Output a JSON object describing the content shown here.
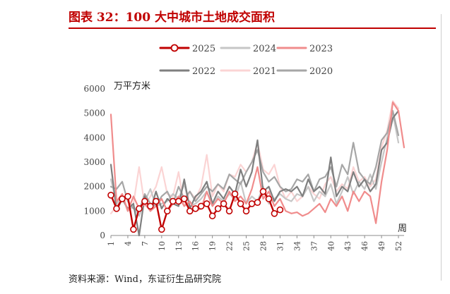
{
  "figure": {
    "title": "图表 32：100 大中城市土地成交面积",
    "source": "资料来源：Wind，东证衍生品研究院"
  },
  "chart_data": {
    "type": "line",
    "ylabel": "万平方米",
    "xlabel": "周",
    "ylim": [
      0,
      6000
    ],
    "yticks": [
      0,
      1000,
      2000,
      3000,
      4000,
      5000,
      6000
    ],
    "xlim": [
      1,
      53
    ],
    "xticks": [
      1,
      4,
      7,
      10,
      13,
      16,
      19,
      22,
      25,
      28,
      31,
      34,
      37,
      40,
      43,
      46,
      49,
      52
    ],
    "legend_position": "top",
    "grid": false,
    "series": [
      {
        "name": "2025",
        "color": "#c00000",
        "markers": true,
        "x": [
          1,
          2,
          3,
          4,
          5,
          6,
          7,
          8,
          9,
          10,
          11,
          12,
          13,
          14,
          15,
          16,
          17,
          18,
          19,
          20,
          21,
          22,
          23,
          24,
          25,
          26,
          27,
          28,
          29,
          30,
          31
        ],
        "values": [
          1650,
          1100,
          1500,
          1600,
          250,
          1100,
          1400,
          1200,
          1400,
          250,
          1000,
          1400,
          1400,
          1500,
          1000,
          1100,
          1200,
          1300,
          800,
          1100,
          1300,
          1000,
          1700,
          1300,
          1000,
          1300,
          1350,
          1800,
          1500,
          900,
          1050
        ]
      },
      {
        "name": "2024",
        "color": "#c6c6c6",
        "markers": false,
        "x": [
          1,
          2,
          3,
          4,
          5,
          6,
          7,
          8,
          9,
          10,
          11,
          12,
          13,
          14,
          15,
          16,
          17,
          18,
          19,
          20,
          21,
          22,
          23,
          24,
          25,
          26,
          27,
          28,
          29,
          30,
          31,
          32,
          33,
          34,
          35,
          36,
          37,
          38,
          39,
          40,
          41,
          42,
          43,
          44,
          45,
          46,
          47,
          48,
          49,
          50,
          51,
          52
        ],
        "values": [
          2300,
          1300,
          1600,
          1000,
          1200,
          800,
          1400,
          1900,
          1200,
          1300,
          1400,
          1700,
          1500,
          2100,
          1200,
          1300,
          1500,
          1800,
          1200,
          1600,
          1400,
          1700,
          1500,
          2200,
          1300,
          1600,
          1400,
          2000,
          1300,
          1500,
          1700,
          1500,
          1400,
          1700,
          1600,
          2000,
          1400,
          1800,
          1600,
          2100,
          1300,
          1800,
          2400,
          1700,
          2200,
          1900,
          2500,
          1900,
          3000,
          4000,
          5000,
          3800
        ]
      },
      {
        "name": "2023",
        "color": "#f08c8c",
        "markers": false,
        "x": [
          1,
          2,
          3,
          4,
          5,
          6,
          7,
          8,
          9,
          10,
          11,
          12,
          13,
          14,
          15,
          16,
          17,
          18,
          19,
          20,
          21,
          22,
          23,
          24,
          25,
          26,
          27,
          28,
          29,
          30,
          31,
          32,
          33,
          34,
          35,
          36,
          37,
          38,
          39,
          40,
          41,
          42,
          43,
          44,
          45,
          46,
          47,
          48,
          49,
          50,
          51,
          52,
          53
        ],
        "values": [
          4950,
          1400,
          1700,
          1000,
          1600,
          1100,
          1300,
          1000,
          1200,
          1500,
          1000,
          1300,
          1600,
          1200,
          1400,
          1000,
          1100,
          1800,
          1200,
          1500,
          1300,
          1800,
          1400,
          1600,
          1300,
          1900,
          2800,
          1500,
          1800,
          1200,
          1500,
          1000,
          900,
          950,
          800,
          900,
          1100,
          1300,
          950,
          1500,
          1200,
          1600,
          1000,
          1800,
          1400,
          1800,
          1600,
          500,
          2200,
          3500,
          5450,
          5100,
          3600
        ]
      },
      {
        "name": "2022",
        "color": "#7f7f7f",
        "markers": false,
        "x": [
          1,
          2,
          3,
          4,
          5,
          6,
          7,
          8,
          9,
          10,
          11,
          12,
          13,
          14,
          15,
          16,
          17,
          18,
          19,
          20,
          21,
          22,
          23,
          24,
          25,
          26,
          27,
          28,
          29,
          30,
          31,
          32,
          33,
          34,
          35,
          36,
          37,
          38,
          39,
          40,
          41,
          42,
          43,
          44,
          45,
          46,
          47,
          48,
          49,
          50,
          51,
          52
        ],
        "values": [
          2900,
          1000,
          1500,
          1100,
          1300,
          0,
          1600,
          1000,
          1800,
          1100,
          1500,
          1300,
          1200,
          2300,
          1100,
          1600,
          1800,
          2200,
          1300,
          1800,
          1500,
          2000,
          1700,
          2700,
          2000,
          2600,
          3900,
          1800,
          2000,
          1400,
          1800,
          1900,
          1800,
          2000,
          1600,
          2300,
          1800,
          2000,
          1700,
          3200,
          1600,
          2000,
          1800,
          2600,
          2000,
          2300,
          1800,
          2100,
          3500,
          3800,
          4800,
          5100
        ]
      },
      {
        "name": "2021",
        "color": "#fbd4d4",
        "markers": false,
        "x": [
          1,
          2,
          3,
          4,
          5,
          6,
          7,
          8,
          9,
          10,
          11,
          12,
          13,
          14,
          15,
          16,
          17,
          18,
          19,
          20,
          21,
          22,
          23,
          24,
          25,
          26,
          27,
          28,
          29,
          30,
          31,
          32,
          33,
          34,
          35,
          36,
          37,
          38,
          39,
          40,
          41,
          42,
          43,
          44,
          45,
          46,
          47,
          48,
          49,
          50,
          51,
          52
        ],
        "values": [
          900,
          1200,
          1700,
          1000,
          1300,
          2800,
          1200,
          1600,
          2000,
          2800,
          1700,
          1600,
          2600,
          1200,
          1800,
          1500,
          2000,
          3300,
          1600,
          2100,
          1800,
          2500,
          2400,
          2900,
          2600,
          3000,
          3800,
          2700,
          2500,
          2900,
          2000,
          1500,
          1800,
          1400,
          1600,
          2000,
          1700,
          1500,
          2100,
          2400,
          1800,
          2100,
          1900,
          2800,
          2200,
          2400,
          2000,
          2300,
          3600,
          4300,
          5500,
          5200
        ]
      },
      {
        "name": "2020",
        "color": "#a6a6a6",
        "markers": false,
        "x": [
          1,
          2,
          3,
          4,
          5,
          6,
          7,
          8,
          9,
          10,
          11,
          12,
          13,
          14,
          15,
          16,
          17,
          18,
          19,
          20,
          21,
          22,
          23,
          24,
          25,
          26,
          27,
          28,
          29,
          30,
          31,
          32,
          33,
          34,
          35,
          36,
          37,
          38,
          39,
          40,
          41,
          42,
          43,
          44,
          45,
          46,
          47,
          48,
          49,
          50,
          51,
          52
        ],
        "values": [
          2000,
          1900,
          2200,
          1400,
          1100,
          1000,
          1700,
          1300,
          1200,
          1600,
          1800,
          1300,
          2000,
          1500,
          1800,
          1400,
          1700,
          2000,
          1800,
          2100,
          1900,
          2500,
          2300,
          2100,
          2600,
          3000,
          3500,
          2600,
          2200,
          2400,
          2000,
          1800,
          1900,
          2300,
          2200,
          2500,
          1800,
          2300,
          2400,
          2800,
          2000,
          2900,
          2500,
          3800,
          2600,
          2300,
          2100,
          2800,
          3900,
          4200,
          5100,
          4100
        ]
      }
    ]
  }
}
